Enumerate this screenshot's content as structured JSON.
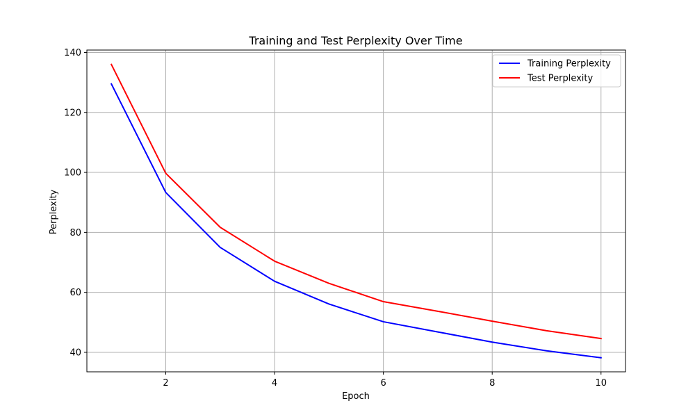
{
  "chart_data": {
    "type": "line",
    "title": "Training and Test Perplexity Over Time",
    "xlabel": "Epoch",
    "ylabel": "Perplexity",
    "x": [
      1,
      2,
      3,
      4,
      5,
      6,
      7,
      8,
      9,
      10
    ],
    "xlim": [
      0.55,
      10.45
    ],
    "ylim": [
      33.5,
      140.8
    ],
    "xticks": [
      2,
      4,
      6,
      8,
      10
    ],
    "yticks": [
      40,
      60,
      80,
      100,
      120,
      140
    ],
    "grid": true,
    "legend_position": "top-right",
    "series": [
      {
        "name": "Training Perplexity",
        "color": "#0000ff",
        "values": [
          129.5,
          93.3,
          75.0,
          63.7,
          56.1,
          50.2,
          46.8,
          43.4,
          40.5,
          38.2
        ]
      },
      {
        "name": "Test Perplexity",
        "color": "#ff0000",
        "values": [
          136.0,
          99.7,
          81.7,
          70.4,
          63.0,
          56.9,
          53.7,
          50.4,
          47.2,
          44.6
        ]
      }
    ]
  }
}
